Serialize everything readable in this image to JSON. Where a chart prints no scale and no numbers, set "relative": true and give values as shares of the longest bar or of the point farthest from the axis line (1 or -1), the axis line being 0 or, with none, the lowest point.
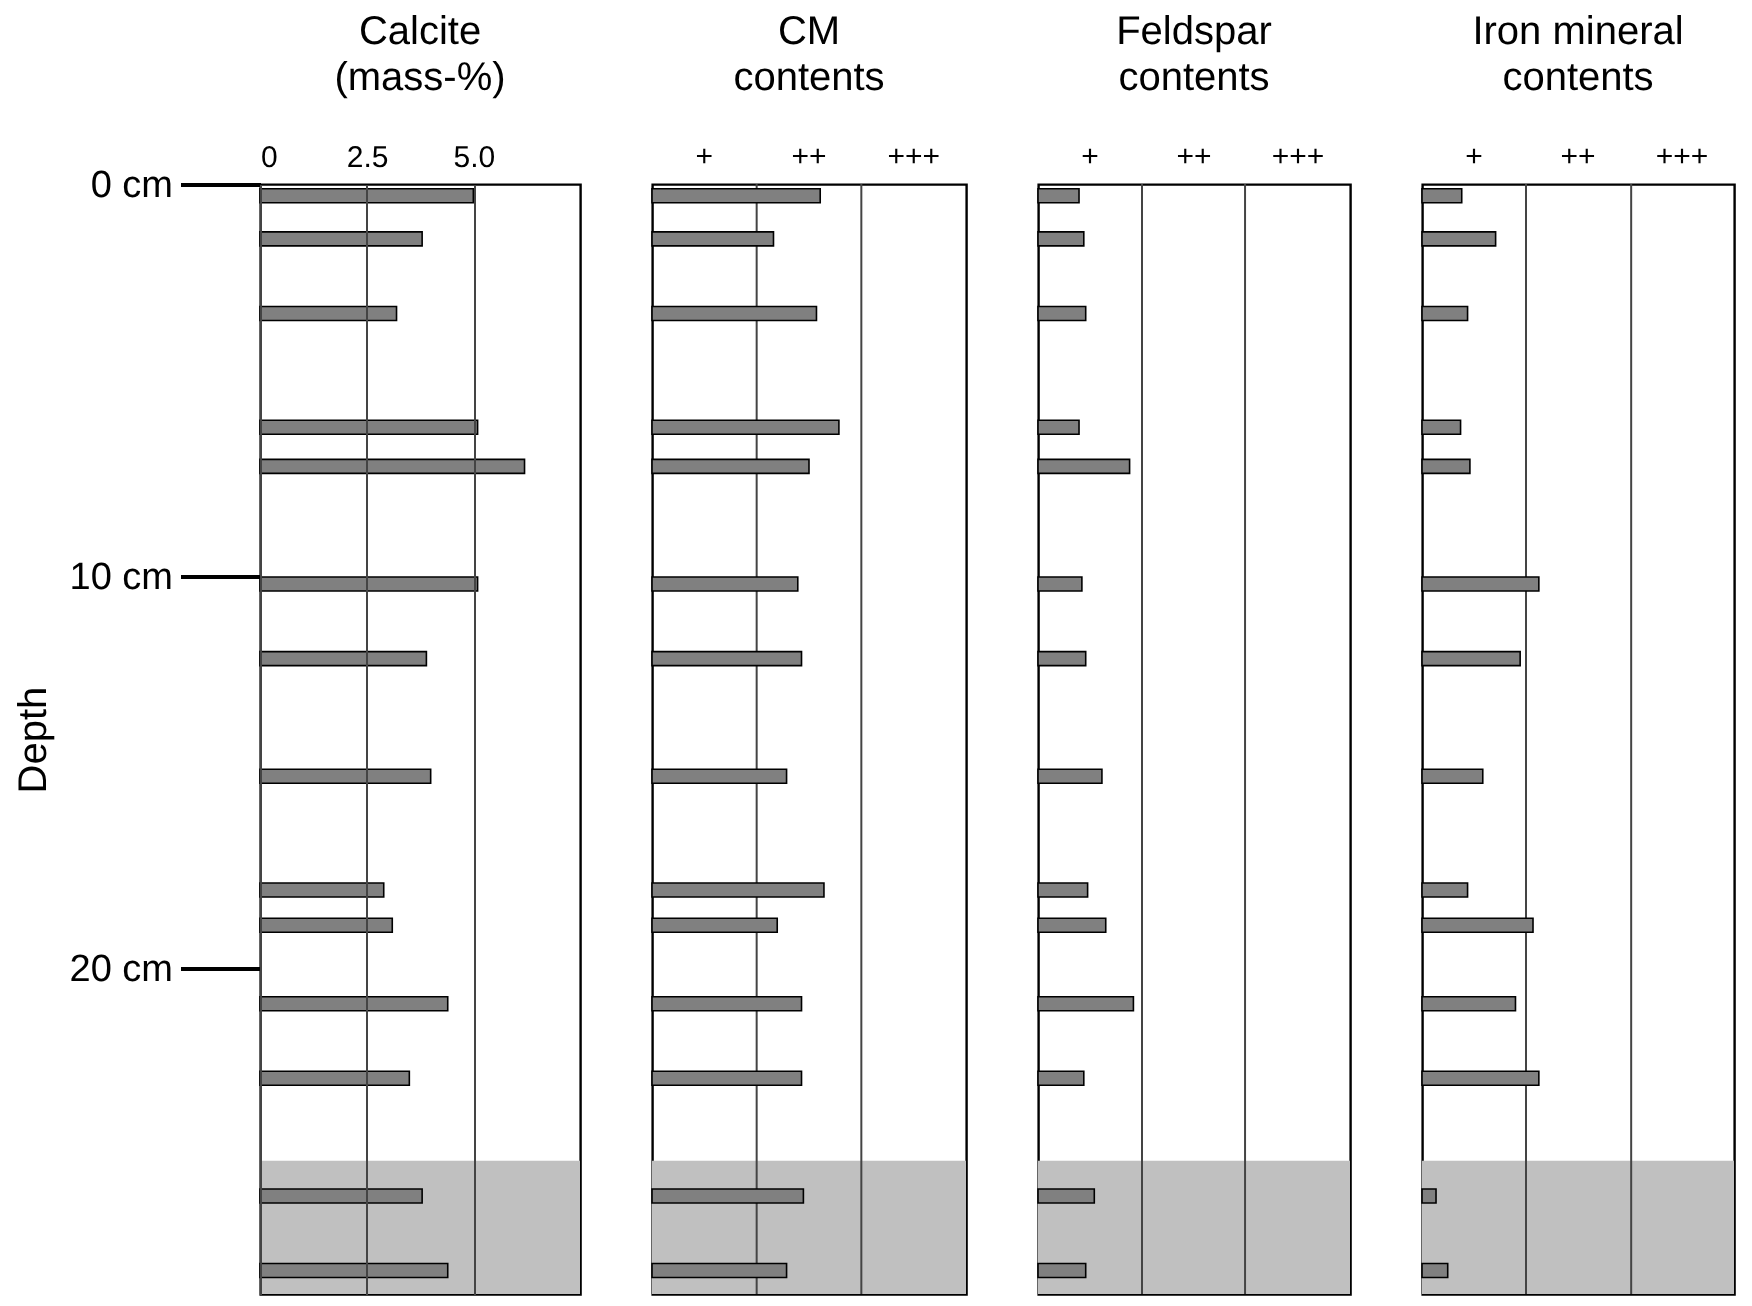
{
  "chart_data": [
    {
      "type": "bar",
      "orientation": "horizontal",
      "title": "Calcite\n(mass-%)",
      "ylabel": "Depth",
      "x": [
        0.3,
        1.4,
        3.3,
        6.2,
        7.2,
        10.2,
        12.1,
        15.1,
        18.0,
        18.9,
        20.9,
        22.8,
        25.8,
        27.7
      ],
      "values": [
        5.0,
        3.8,
        3.2,
        5.1,
        6.2,
        5.1,
        3.9,
        4.0,
        2.9,
        3.1,
        4.4,
        3.5,
        3.8,
        4.4
      ],
      "color": "#808080",
      "xlim": [
        0,
        7.5
      ],
      "xticks": [
        0,
        2.5,
        {
          "value": 5,
          "label": "5.0"
        }
      ],
      "ylim": [
        28.3,
        0
      ],
      "yticks": [
        {
          "value": 0,
          "label": "0 cm"
        },
        {
          "value": 10,
          "label": "10 cm"
        },
        {
          "value": 20,
          "label": "20 cm"
        }
      ],
      "grid": "x",
      "bands": [
        {
          "axis": "y",
          "from": 24.9,
          "to": 28.3,
          "color": "#c0c0c0"
        }
      ]
    },
    {
      "type": "bar",
      "orientation": "horizontal",
      "relative": true,
      "title": "CM\ncontents",
      "annotations": [
        "+",
        "++",
        "+++"
      ],
      "x": [
        0.3,
        1.4,
        3.3,
        6.2,
        7.2,
        10.2,
        12.1,
        15.1,
        18.0,
        18.9,
        20.9,
        22.8,
        25.8,
        27.7
      ],
      "values": [
        0.9,
        0.65,
        0.88,
        1,
        0.84,
        0.78,
        0.8,
        0.72,
        0.92,
        0.67,
        0.8,
        0.8,
        0.81,
        0.72
      ],
      "color": "#808080",
      "ylim": [
        28.3,
        0
      ],
      "ref_lines": [
        {
          "axis": "x",
          "value": 0.56,
          "color": "#444444"
        },
        {
          "axis": "x",
          "value": 1.12,
          "color": "#444444"
        }
      ],
      "bands": [
        {
          "axis": "y",
          "from": 24.9,
          "to": 28.3,
          "color": "#c0c0c0"
        }
      ]
    },
    {
      "type": "bar",
      "orientation": "horizontal",
      "relative": true,
      "title": "Feldspar\ncontents",
      "annotations": [
        "+",
        "++",
        "+++"
      ],
      "x": [
        0.3,
        1.4,
        3.3,
        6.2,
        7.2,
        10.2,
        12.1,
        15.1,
        18.0,
        18.9,
        20.9,
        22.8,
        25.8,
        27.7
      ],
      "values": [
        0.43,
        0.48,
        0.5,
        0.43,
        0.96,
        0.46,
        0.5,
        0.67,
        0.52,
        0.71,
        1,
        0.48,
        0.59,
        0.5
      ],
      "color": "#808080",
      "ylim": [
        28.3,
        0
      ],
      "ref_lines": [
        {
          "axis": "x",
          "value": 1.09,
          "color": "#444444"
        },
        {
          "axis": "x",
          "value": 2.17,
          "color": "#444444"
        }
      ],
      "bands": [
        {
          "axis": "y",
          "from": 24.9,
          "to": 28.3,
          "color": "#c0c0c0"
        }
      ]
    },
    {
      "type": "bar",
      "orientation": "horizontal",
      "relative": true,
      "title": "Iron mineral\ncontents",
      "annotations": [
        "+",
        "++",
        "+++"
      ],
      "x": [
        0.3,
        1.4,
        3.3,
        6.2,
        7.2,
        10.2,
        12.1,
        15.1,
        18.0,
        18.9,
        20.9,
        22.8,
        25.8,
        27.7
      ],
      "values": [
        0.34,
        0.63,
        0.39,
        0.33,
        0.41,
        1,
        0.84,
        0.52,
        0.39,
        0.95,
        0.8,
        1,
        0.12,
        0.22
      ],
      "color": "#808080",
      "ylim": [
        28.3,
        0
      ],
      "ref_lines": [
        {
          "axis": "x",
          "value": 0.89,
          "color": "#444444"
        },
        {
          "axis": "x",
          "value": 1.79,
          "color": "#444444"
        }
      ],
      "bands": [
        {
          "axis": "y",
          "from": 24.9,
          "to": 28.3,
          "color": "#c0c0c0"
        }
      ]
    }
  ]
}
